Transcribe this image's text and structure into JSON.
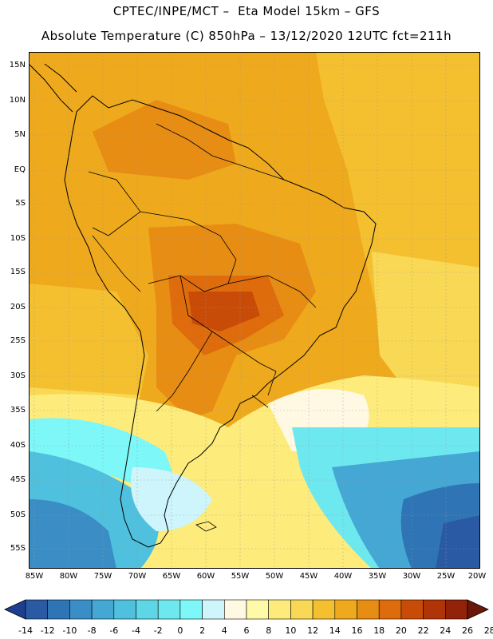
{
  "header": {
    "title_line1": "CPTEC/INPE/MCT –  Eta Model 15km – GFS",
    "title_line2": "Absolute Temperature (C) 850hPa – 13/12/2020 12UTC fct=211h"
  },
  "axes": {
    "lat_labels": [
      "15N",
      "10N",
      "5N",
      "EQ",
      "5S",
      "10S",
      "15S",
      "20S",
      "25S",
      "30S",
      "35S",
      "40S",
      "45S",
      "50S",
      "55S"
    ],
    "lon_labels": [
      "85W",
      "80W",
      "75W",
      "70W",
      "65W",
      "60W",
      "55W",
      "50W",
      "45W",
      "40W",
      "35W",
      "30W",
      "25W",
      "20W"
    ]
  },
  "colorbar": {
    "labels": [
      "-14",
      "-12",
      "-10",
      "-8",
      "-6",
      "-4",
      "-2",
      "0",
      "2",
      "4",
      "6",
      "8",
      "10",
      "12",
      "14",
      "16",
      "18",
      "20",
      "22",
      "24",
      "26",
      "28"
    ],
    "colors": [
      "#1e3f8f",
      "#2a5aa3",
      "#2f74b5",
      "#3a8ec5",
      "#45a7d4",
      "#4fc0dd",
      "#5dd6e6",
      "#6ee8ef",
      "#7df7f7",
      "#cdf5fb",
      "#fff9e4",
      "#fffaa8",
      "#fdec7b",
      "#f9d855",
      "#f4c030",
      "#efa91c",
      "#e88d13",
      "#de6c0c",
      "#c84c07",
      "#b03407",
      "#922309",
      "#6a1609"
    ]
  }
}
